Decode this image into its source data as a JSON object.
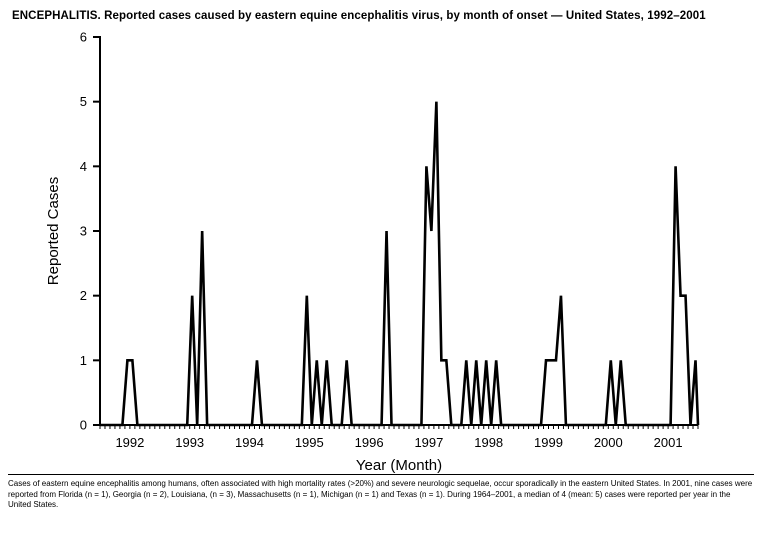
{
  "page": {
    "title": "ENCEPHALITIS. Reported cases caused by eastern equine encephalitis virus, by month of onset — United States, 1992–2001"
  },
  "chart_data": {
    "type": "line",
    "title": "ENCEPHALITIS. Reported cases caused by eastern equine encephalitis virus, by month of onset — United States, 1992–2001",
    "xlabel": "Year (Month)",
    "ylabel": "Reported Cases",
    "ylim": [
      0,
      6
    ],
    "y_ticks": [
      0,
      1,
      2,
      3,
      4,
      5,
      6
    ],
    "grid": false,
    "legend_position": "none",
    "line_color": "#000000",
    "years": [
      "1992",
      "1993",
      "1994",
      "1995",
      "1996",
      "1997",
      "1998",
      "1999",
      "2000",
      "2001"
    ],
    "months_per_year": 12,
    "monthly_values": [
      0,
      0,
      0,
      0,
      0,
      1,
      1,
      0,
      0,
      0,
      0,
      0,
      0,
      0,
      0,
      0,
      0,
      0,
      2,
      0,
      3,
      0,
      0,
      0,
      0,
      0,
      0,
      0,
      0,
      0,
      0,
      1,
      0,
      0,
      0,
      0,
      0,
      0,
      0,
      0,
      0,
      2,
      0,
      1,
      0,
      1,
      0,
      0,
      0,
      1,
      0,
      0,
      0,
      0,
      0,
      0,
      0,
      3,
      0,
      0,
      0,
      0,
      0,
      0,
      0,
      4,
      3,
      5,
      1,
      1,
      0,
      0,
      0,
      1,
      0,
      1,
      0,
      1,
      0,
      1,
      0,
      0,
      0,
      0,
      0,
      0,
      0,
      0,
      0,
      1,
      1,
      1,
      2,
      0,
      0,
      0,
      0,
      0,
      0,
      0,
      0,
      0,
      1,
      0,
      1,
      0,
      0,
      0,
      0,
      0,
      0,
      0,
      0,
      0,
      0,
      4,
      2,
      2,
      0,
      1
    ]
  },
  "footnote": {
    "text": "Cases of eastern equine encephalitis among humans, often associated with high mortality rates (>20%) and severe neurologic sequelae, occur sporadically in the eastern United States. In 2001, nine cases were reported from Florida (n = 1), Georgia (n = 2), Louisiana, (n = 3), Massachusetts (n = 1), Michigan (n = 1) and Texas (n = 1). During 1964–2001, a median of 4 (mean: 5) cases were reported per year in the United States."
  }
}
